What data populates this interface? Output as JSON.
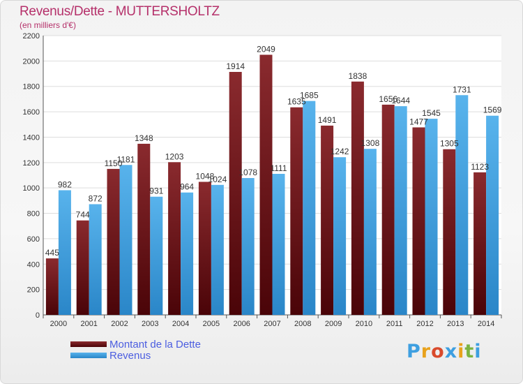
{
  "chart_data": {
    "type": "bar",
    "title": "Revenus/Dette - MUTTERSHOLTZ",
    "subtitle": "(en milliers d'€)",
    "xlabel": "",
    "ylabel": "",
    "categories": [
      "2000",
      "2001",
      "2002",
      "2003",
      "2004",
      "2005",
      "2006",
      "2007",
      "2008",
      "2009",
      "2010",
      "2011",
      "2012",
      "2013",
      "2014"
    ],
    "series": [
      {
        "name": "Montant de la Dette",
        "color": "#7a1a1e",
        "values": [
          445,
          744,
          1150,
          1348,
          1203,
          1048,
          1914,
          2049,
          1635,
          1491,
          1838,
          1656,
          1477,
          1305,
          1123
        ],
        "labels": [
          "445",
          "744",
          "1150",
          "1348",
          "1203",
          "1048",
          "1914",
          "2049",
          "1635",
          "1491",
          "1838",
          "1656",
          "1477",
          "1305",
          "1123"
        ]
      },
      {
        "name": "Revenus",
        "color": "#3e9fe0",
        "values": [
          982,
          872,
          1181,
          931,
          964,
          1024,
          1078,
          1111,
          1685,
          1242,
          1308,
          1644,
          1545,
          1731,
          1569
        ],
        "labels": [
          "982",
          "872",
          "1181",
          "931",
          "964",
          "1024",
          "1078",
          "1111",
          "1685",
          "1242",
          "1308",
          "1644",
          "1545",
          "1731",
          "1569"
        ]
      }
    ],
    "ylim": [
      0,
      2200
    ],
    "yticks": [
      0,
      200,
      400,
      600,
      800,
      1000,
      1200,
      1400,
      1600,
      1800,
      2000,
      2200
    ],
    "ytick_labels": [
      "0",
      "200",
      "400",
      "600",
      "800",
      "1000",
      "1200",
      "1400",
      "1600",
      "1800",
      "2000",
      "2200"
    ],
    "grid": true,
    "legend_position": "bottom-left"
  },
  "legend": {
    "items": [
      {
        "label": "Montant de la Dette",
        "color": "#7a1a1e"
      },
      {
        "label": "Revenus",
        "color": "#3e9fe0"
      }
    ]
  },
  "logo": {
    "text": "Proxiti",
    "letters": [
      "P",
      "r",
      "o",
      "x",
      "i",
      "t",
      "i"
    ],
    "colors": [
      "#3e9fe0",
      "#e8a21c",
      "#d94a2c",
      "#3e9fe0",
      "#e8a21c",
      "#7cb342",
      "#3e9fe0"
    ]
  }
}
